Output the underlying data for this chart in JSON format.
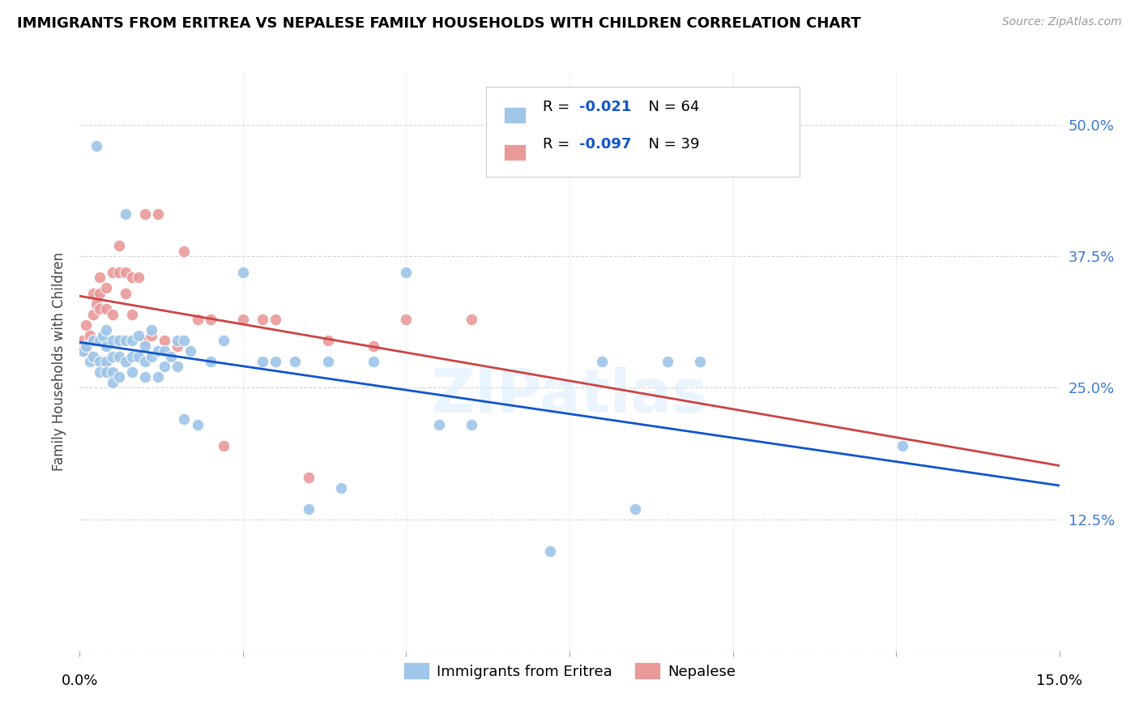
{
  "title": "IMMIGRANTS FROM ERITREA VS NEPALESE FAMILY HOUSEHOLDS WITH CHILDREN CORRELATION CHART",
  "source": "Source: ZipAtlas.com",
  "ylabel": "Family Households with Children",
  "legend_label1": "Immigrants from Eritrea",
  "legend_label2": "Nepalese",
  "r1": "-0.021",
  "n1": "64",
  "r2": "-0.097",
  "n2": "39",
  "color_blue": "#9fc5e8",
  "color_pink": "#ea9999",
  "trendline_blue": "#1155cc",
  "trendline_pink": "#cc4444",
  "xlim": [
    0.0,
    0.15
  ],
  "ylim": [
    0.0,
    0.55
  ],
  "yticks": [
    0.0,
    0.125,
    0.25,
    0.375,
    0.5
  ],
  "ytick_labels": [
    "",
    "12.5%",
    "25.0%",
    "37.5%",
    "50.0%"
  ],
  "background_color": "#ffffff",
  "watermark": "ZIPatlas",
  "scatter_blue_x": [
    0.0005,
    0.001,
    0.0015,
    0.002,
    0.002,
    0.0025,
    0.003,
    0.003,
    0.003,
    0.0035,
    0.004,
    0.004,
    0.004,
    0.004,
    0.005,
    0.005,
    0.005,
    0.005,
    0.006,
    0.006,
    0.006,
    0.007,
    0.007,
    0.007,
    0.008,
    0.008,
    0.008,
    0.009,
    0.009,
    0.01,
    0.01,
    0.01,
    0.011,
    0.011,
    0.012,
    0.012,
    0.013,
    0.013,
    0.014,
    0.015,
    0.015,
    0.016,
    0.016,
    0.017,
    0.018,
    0.02,
    0.022,
    0.025,
    0.028,
    0.03,
    0.033,
    0.035,
    0.038,
    0.04,
    0.045,
    0.05,
    0.055,
    0.06,
    0.072,
    0.08,
    0.085,
    0.09,
    0.095,
    0.126
  ],
  "scatter_blue_y": [
    0.285,
    0.29,
    0.275,
    0.295,
    0.28,
    0.48,
    0.295,
    0.275,
    0.265,
    0.3,
    0.305,
    0.29,
    0.275,
    0.265,
    0.295,
    0.28,
    0.265,
    0.255,
    0.295,
    0.28,
    0.26,
    0.415,
    0.295,
    0.275,
    0.295,
    0.28,
    0.265,
    0.3,
    0.28,
    0.29,
    0.275,
    0.26,
    0.305,
    0.28,
    0.285,
    0.26,
    0.285,
    0.27,
    0.28,
    0.295,
    0.27,
    0.295,
    0.22,
    0.285,
    0.215,
    0.275,
    0.295,
    0.36,
    0.275,
    0.275,
    0.275,
    0.135,
    0.275,
    0.155,
    0.275,
    0.36,
    0.215,
    0.215,
    0.095,
    0.275,
    0.135,
    0.275,
    0.275,
    0.195
  ],
  "scatter_pink_x": [
    0.0005,
    0.001,
    0.001,
    0.0015,
    0.002,
    0.002,
    0.0025,
    0.003,
    0.003,
    0.003,
    0.004,
    0.004,
    0.005,
    0.005,
    0.006,
    0.006,
    0.007,
    0.007,
    0.008,
    0.008,
    0.009,
    0.01,
    0.01,
    0.011,
    0.012,
    0.013,
    0.015,
    0.016,
    0.018,
    0.02,
    0.022,
    0.025,
    0.028,
    0.03,
    0.035,
    0.038,
    0.045,
    0.05,
    0.06
  ],
  "scatter_pink_y": [
    0.295,
    0.31,
    0.285,
    0.3,
    0.34,
    0.32,
    0.33,
    0.355,
    0.34,
    0.325,
    0.345,
    0.325,
    0.36,
    0.32,
    0.385,
    0.36,
    0.36,
    0.34,
    0.355,
    0.32,
    0.355,
    0.415,
    0.295,
    0.3,
    0.415,
    0.295,
    0.29,
    0.38,
    0.315,
    0.315,
    0.195,
    0.315,
    0.315,
    0.315,
    0.165,
    0.295,
    0.29,
    0.315,
    0.315
  ]
}
